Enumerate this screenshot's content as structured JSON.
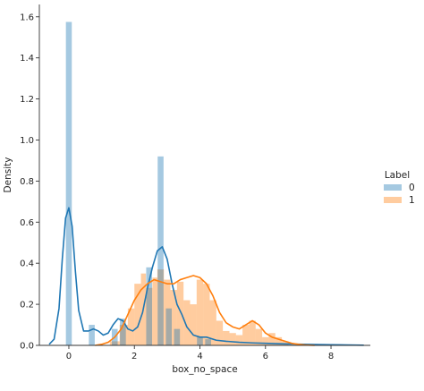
{
  "chart_data": {
    "type": "histogram",
    "xlabel": "box_no_space",
    "ylabel": "Density",
    "xlim": [
      -0.9,
      9.2
    ],
    "ylim": [
      0,
      1.66
    ],
    "xticks": [
      "0",
      "2",
      "4",
      "6",
      "8"
    ],
    "yticks": [
      "0.0",
      "0.2",
      "0.4",
      "0.6",
      "0.8",
      "1.0",
      "1.2",
      "1.4",
      "1.6"
    ],
    "legend": {
      "title": "Label",
      "placement": "right",
      "entries": [
        "0",
        "1"
      ]
    },
    "series": [
      {
        "name": "0",
        "color": "#1f77b4",
        "bins": [
          {
            "x0": -0.09,
            "x1": 0.09,
            "density": 1.575
          },
          {
            "x0": 0.61,
            "x1": 0.79,
            "density": 0.1
          },
          {
            "x0": 1.31,
            "x1": 1.49,
            "density": 0.08
          },
          {
            "x0": 1.56,
            "x1": 1.74,
            "density": 0.13
          },
          {
            "x0": 2.36,
            "x1": 2.54,
            "density": 0.38
          },
          {
            "x0": 2.71,
            "x1": 2.89,
            "density": 0.92
          },
          {
            "x0": 2.96,
            "x1": 3.14,
            "density": 0.18
          },
          {
            "x0": 3.21,
            "x1": 3.39,
            "density": 0.08
          },
          {
            "x0": 3.91,
            "x1": 4.09,
            "density": 0.04
          },
          {
            "x0": 4.16,
            "x1": 4.34,
            "density": 0.03
          }
        ],
        "kde": {
          "x": [
            -0.6,
            -0.45,
            -0.3,
            -0.2,
            -0.1,
            0,
            0.1,
            0.2,
            0.3,
            0.45,
            0.6,
            0.75,
            0.9,
            1.05,
            1.2,
            1.35,
            1.5,
            1.65,
            1.8,
            1.95,
            2.1,
            2.25,
            2.4,
            2.55,
            2.7,
            2.85,
            3.0,
            3.15,
            3.3,
            3.45,
            3.6,
            3.8,
            4.0,
            4.2,
            4.5,
            4.8,
            5.2,
            5.6,
            6.0,
            6.4,
            7.0,
            7.5,
            8.0,
            8.5,
            9.0
          ],
          "y": [
            0.005,
            0.03,
            0.18,
            0.42,
            0.62,
            0.67,
            0.58,
            0.36,
            0.17,
            0.07,
            0.07,
            0.08,
            0.07,
            0.05,
            0.06,
            0.1,
            0.13,
            0.12,
            0.08,
            0.07,
            0.09,
            0.16,
            0.28,
            0.38,
            0.46,
            0.48,
            0.42,
            0.3,
            0.2,
            0.15,
            0.09,
            0.05,
            0.04,
            0.04,
            0.025,
            0.02,
            0.015,
            0.012,
            0.01,
            0.008,
            0.006,
            0.004,
            0.003,
            0.002,
            0.001
          ]
        }
      },
      {
        "name": "1",
        "color": "#ff7f0e",
        "bins": [
          {
            "x0": 1.25,
            "x1": 1.55,
            "density": 0.02
          },
          {
            "x0": 1.55,
            "x1": 1.8,
            "density": 0.1
          },
          {
            "x0": 1.8,
            "x1": 2.0,
            "density": 0.18
          },
          {
            "x0": 2.0,
            "x1": 2.2,
            "density": 0.3
          },
          {
            "x0": 2.2,
            "x1": 2.35,
            "density": 0.35
          },
          {
            "x0": 2.35,
            "x1": 2.55,
            "density": 0.28
          },
          {
            "x0": 2.55,
            "x1": 2.7,
            "density": 0.33
          },
          {
            "x0": 2.7,
            "x1": 2.9,
            "density": 0.37
          },
          {
            "x0": 2.9,
            "x1": 3.1,
            "density": 0.32
          },
          {
            "x0": 3.1,
            "x1": 3.3,
            "density": 0.27
          },
          {
            "x0": 3.3,
            "x1": 3.5,
            "density": 0.31
          },
          {
            "x0": 3.5,
            "x1": 3.7,
            "density": 0.22
          },
          {
            "x0": 3.7,
            "x1": 3.9,
            "density": 0.2
          },
          {
            "x0": 3.9,
            "x1": 4.1,
            "density": 0.32
          },
          {
            "x0": 4.1,
            "x1": 4.3,
            "density": 0.3
          },
          {
            "x0": 4.3,
            "x1": 4.5,
            "density": 0.22
          },
          {
            "x0": 4.5,
            "x1": 4.7,
            "density": 0.12
          },
          {
            "x0": 4.7,
            "x1": 4.9,
            "density": 0.07
          },
          {
            "x0": 4.9,
            "x1": 5.1,
            "density": 0.06
          },
          {
            "x0": 5.1,
            "x1": 5.3,
            "density": 0.05
          },
          {
            "x0": 5.3,
            "x1": 5.5,
            "density": 0.1
          },
          {
            "x0": 5.5,
            "x1": 5.7,
            "density": 0.12
          },
          {
            "x0": 5.7,
            "x1": 5.9,
            "density": 0.08
          },
          {
            "x0": 5.9,
            "x1": 6.1,
            "density": 0.04
          },
          {
            "x0": 6.1,
            "x1": 6.3,
            "density": 0.06
          },
          {
            "x0": 6.3,
            "x1": 6.5,
            "density": 0.04
          },
          {
            "x0": 6.5,
            "x1": 6.7,
            "density": 0.02
          }
        ],
        "kde": {
          "x": [
            0.8,
            1.0,
            1.2,
            1.4,
            1.6,
            1.8,
            2.0,
            2.2,
            2.4,
            2.6,
            2.8,
            3.0,
            3.2,
            3.4,
            3.6,
            3.8,
            4.0,
            4.2,
            4.4,
            4.6,
            4.8,
            5.0,
            5.2,
            5.4,
            5.6,
            5.8,
            6.0,
            6.2,
            6.4,
            6.6,
            6.8,
            7.0,
            7.2,
            7.5
          ],
          "y": [
            0.0,
            0.005,
            0.015,
            0.04,
            0.08,
            0.15,
            0.22,
            0.27,
            0.3,
            0.32,
            0.31,
            0.3,
            0.3,
            0.32,
            0.33,
            0.34,
            0.33,
            0.3,
            0.24,
            0.16,
            0.11,
            0.09,
            0.08,
            0.1,
            0.12,
            0.1,
            0.06,
            0.04,
            0.03,
            0.02,
            0.01,
            0.005,
            0.002,
            0.0
          ]
        }
      }
    ]
  }
}
